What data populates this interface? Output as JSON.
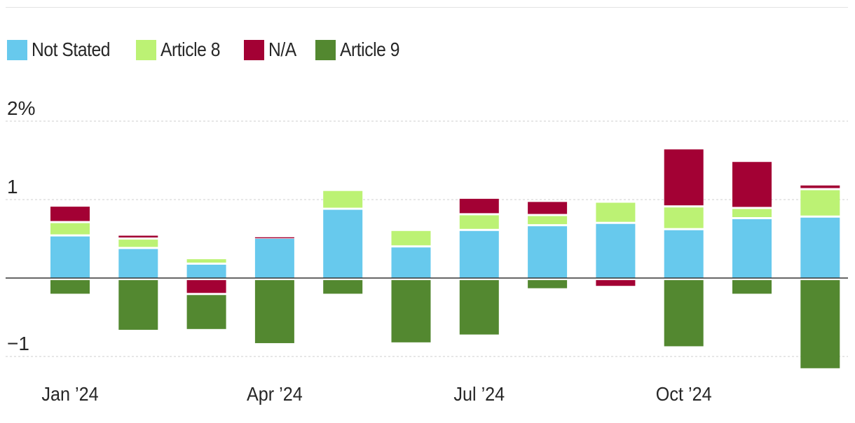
{
  "chart_data": {
    "type": "bar",
    "stacked": true,
    "title": "",
    "xlabel": "",
    "ylabel": "",
    "ylim": [
      -1.2,
      2.0
    ],
    "yticks": [
      {
        "value": 2,
        "label": "2%"
      },
      {
        "value": 1,
        "label": "1"
      },
      {
        "value": -1,
        "label": "−1"
      }
    ],
    "categories": [
      "Jan '24",
      "Feb '24",
      "Mar '24",
      "Apr '24",
      "May '24",
      "Jun '24",
      "Jul '24",
      "Aug '24",
      "Sep '24",
      "Oct '24",
      "Nov '24",
      "Dec '24"
    ],
    "xtick_labels": [
      {
        "index": 0,
        "label": "Jan ’24"
      },
      {
        "index": 3,
        "label": "Apr ’24"
      },
      {
        "index": 6,
        "label": "Jul ’24"
      },
      {
        "index": 9,
        "label": "Oct ’24"
      }
    ],
    "series": [
      {
        "name": "Not Stated",
        "color": "#67c9ed",
        "values": [
          0.53,
          0.37,
          0.17,
          0.5,
          0.87,
          0.39,
          0.6,
          0.66,
          0.69,
          0.61,
          0.75,
          0.77
        ]
      },
      {
        "name": "Article 8",
        "color": "#bcf274",
        "values": [
          0.17,
          0.12,
          0.07,
          0.0,
          0.24,
          0.21,
          0.2,
          0.13,
          0.27,
          0.29,
          0.13,
          0.35
        ]
      },
      {
        "name": "N/A",
        "color": "#a30134",
        "values": [
          0.21,
          0.05,
          -0.19,
          0.02,
          0.0,
          0.0,
          0.21,
          0.18,
          -0.1,
          0.74,
          0.6,
          0.06
        ]
      },
      {
        "name": "Article 9",
        "color": "#538830",
        "values": [
          -0.2,
          -0.66,
          -0.46,
          -0.83,
          -0.2,
          -0.82,
          -0.72,
          -0.13,
          0.0,
          -0.87,
          -0.2,
          -1.15
        ]
      }
    ]
  },
  "legend": [
    {
      "label": "Not Stated",
      "color": "#67c9ed"
    },
    {
      "label": "Article 8",
      "color": "#bcf274"
    },
    {
      "label": "N/A",
      "color": "#a30134"
    },
    {
      "label": "Article 9",
      "color": "#538830"
    }
  ]
}
